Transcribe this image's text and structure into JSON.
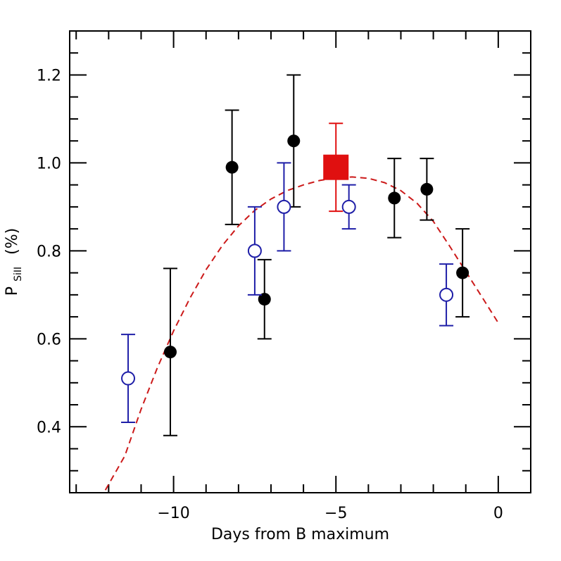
{
  "chart_data": {
    "type": "scatter",
    "xlabel": "Days from B maximum",
    "ylabel_main": "P",
    "ylabel_sub": "SiII",
    "ylabel_unit": "(%)",
    "xlim": [
      -13.2,
      1.0
    ],
    "ylim": [
      0.25,
      1.3
    ],
    "x_ticks": [
      {
        "value": -10,
        "label": "−10"
      },
      {
        "value": -5,
        "label": "−5"
      },
      {
        "value": 0,
        "label": "0"
      }
    ],
    "y_ticks": [
      {
        "value": 0.4,
        "label": "0.4"
      },
      {
        "value": 0.6,
        "label": "0.6"
      },
      {
        "value": 0.8,
        "label": "0.8"
      },
      {
        "value": 1.0,
        "label": "1.0"
      },
      {
        "value": 1.2,
        "label": "1.2"
      }
    ],
    "x_minor_step": 1,
    "y_minor_step": 0.05,
    "series": [
      {
        "marker": "filled-circle",
        "color": "#000000",
        "points": [
          {
            "x": -10.1,
            "y": 0.57,
            "ylo": 0.38,
            "yhi": 0.76
          },
          {
            "x": -8.2,
            "y": 0.99,
            "ylo": 0.86,
            "yhi": 1.12
          },
          {
            "x": -7.2,
            "y": 0.69,
            "ylo": 0.6,
            "yhi": 0.78
          },
          {
            "x": -6.3,
            "y": 1.05,
            "ylo": 0.9,
            "yhi": 1.2
          },
          {
            "x": -3.2,
            "y": 0.92,
            "ylo": 0.83,
            "yhi": 1.01
          },
          {
            "x": -2.2,
            "y": 0.94,
            "ylo": 0.87,
            "yhi": 1.01
          },
          {
            "x": -1.1,
            "y": 0.75,
            "ylo": 0.65,
            "yhi": 0.85
          }
        ]
      },
      {
        "marker": "open-circle",
        "color": "#1f1fa8",
        "points": [
          {
            "x": -11.4,
            "y": 0.51,
            "ylo": 0.41,
            "yhi": 0.61
          },
          {
            "x": -7.5,
            "y": 0.8,
            "ylo": 0.7,
            "yhi": 0.9
          },
          {
            "x": -6.6,
            "y": 0.9,
            "ylo": 0.8,
            "yhi": 1.0
          },
          {
            "x": -4.6,
            "y": 0.9,
            "ylo": 0.85,
            "yhi": 0.95
          },
          {
            "x": -1.6,
            "y": 0.7,
            "ylo": 0.63,
            "yhi": 0.77
          }
        ]
      },
      {
        "marker": "filled-square",
        "color": "#e01010",
        "points": [
          {
            "x": -5.0,
            "y": 0.99,
            "ylo": 0.89,
            "yhi": 1.09
          }
        ]
      }
    ],
    "fit_curve": {
      "style": "dashed",
      "color": "#cc1a1a",
      "x": [
        -12.1,
        -11.5,
        -11.0,
        -10.5,
        -10.0,
        -9.5,
        -9.0,
        -8.5,
        -8.0,
        -7.5,
        -7.0,
        -6.5,
        -6.0,
        -5.5,
        -5.0,
        -4.5,
        -4.0,
        -3.5,
        -3.0,
        -2.5,
        -2.0,
        -1.5,
        -1.0,
        -0.5,
        0.0
      ],
      "y": [
        0.256,
        0.334,
        0.44,
        0.534,
        0.618,
        0.692,
        0.757,
        0.812,
        0.857,
        0.892,
        0.918,
        0.937,
        0.95,
        0.96,
        0.966,
        0.968,
        0.965,
        0.955,
        0.937,
        0.908,
        0.867,
        0.811,
        0.753,
        0.695,
        0.636
      ]
    }
  }
}
